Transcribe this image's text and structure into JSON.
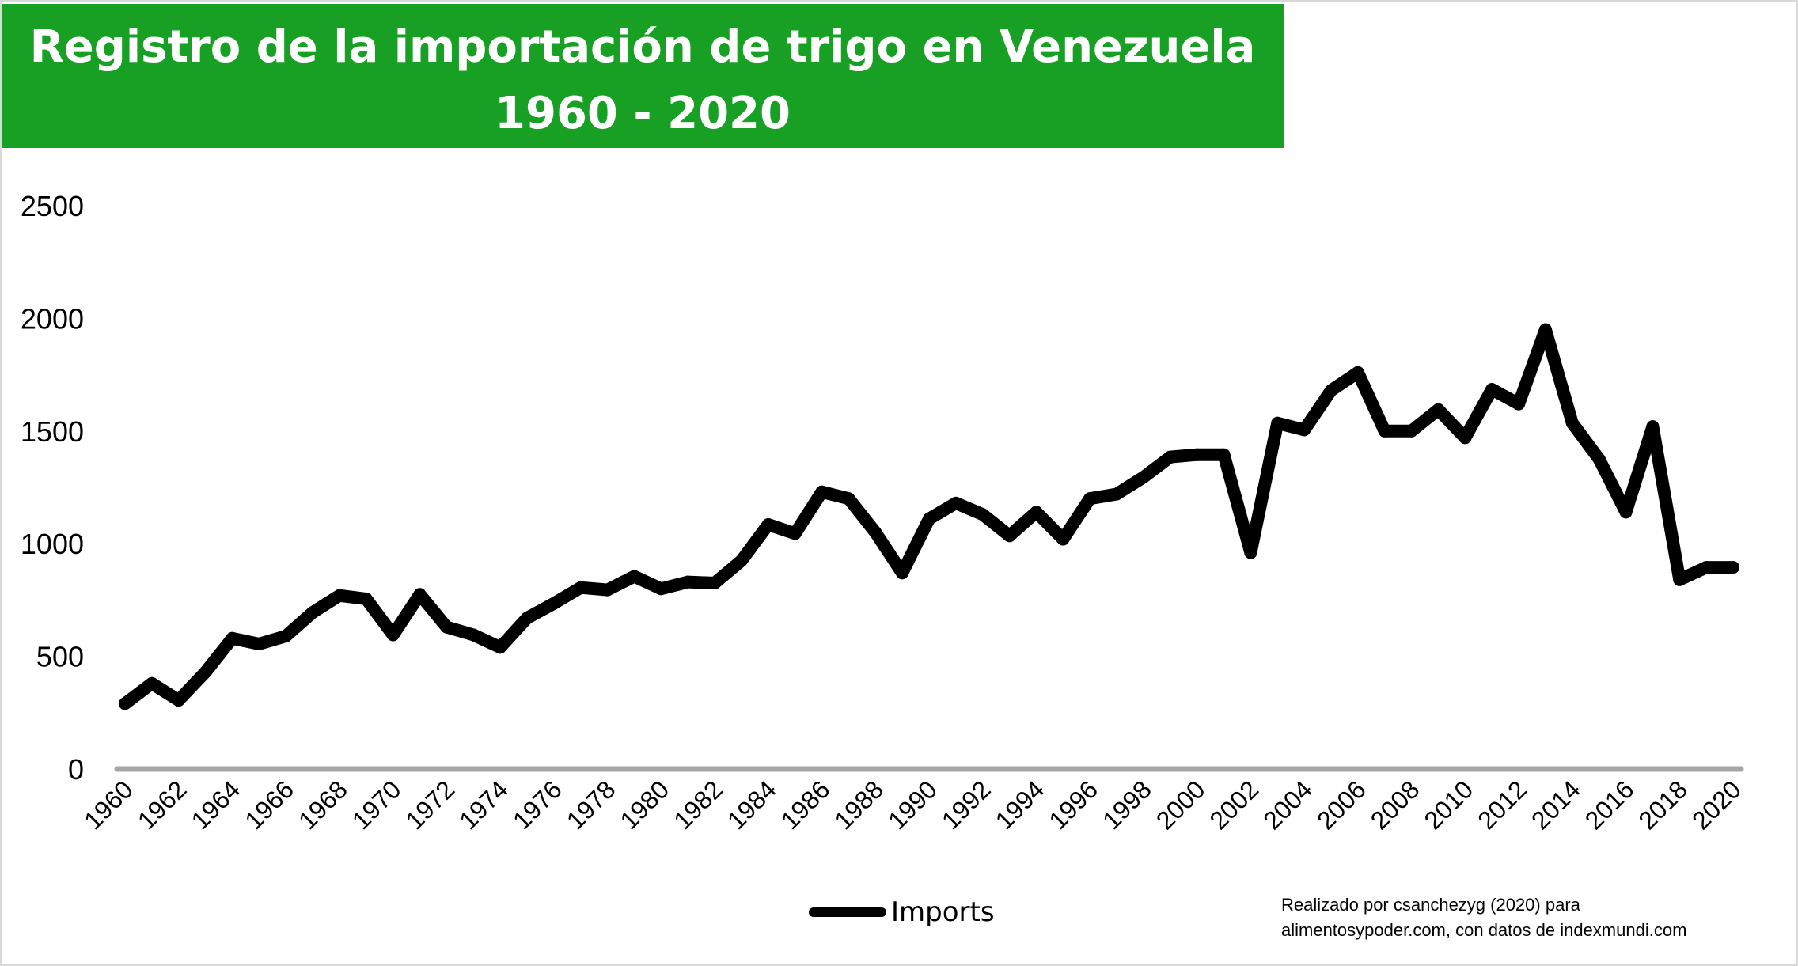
{
  "title": {
    "line1": "Registro de la importación de trigo en Venezuela",
    "line2": "1960 - 2020"
  },
  "credit": {
    "line1": "Realizado por csanchezyg (2020) para",
    "line2": "alimentosypoder.com, con datos de indexmundi.com"
  },
  "colors": {
    "title_background": "#18a024",
    "line": "#000000",
    "zero_axis": "#a6a6a6"
  },
  "chart_data": {
    "type": "line",
    "title": "Registro de la importación de trigo en Venezuela 1960 - 2020",
    "xlabel": "",
    "ylabel": "",
    "ylim": [
      0,
      2500
    ],
    "yticks": [
      0,
      500,
      1000,
      1500,
      2000,
      2500
    ],
    "xticks": [
      1960,
      1962,
      1964,
      1966,
      1968,
      1970,
      1972,
      1974,
      1976,
      1978,
      1980,
      1982,
      1984,
      1986,
      1988,
      1990,
      1992,
      1994,
      1996,
      1998,
      2000,
      2002,
      2004,
      2006,
      2008,
      2010,
      2012,
      2014,
      2016,
      2018,
      2020
    ],
    "grid": false,
    "legend_position": "bottom",
    "x": [
      1960,
      1961,
      1962,
      1963,
      1964,
      1965,
      1966,
      1967,
      1968,
      1969,
      1970,
      1971,
      1972,
      1973,
      1974,
      1975,
      1976,
      1977,
      1978,
      1979,
      1980,
      1981,
      1982,
      1983,
      1984,
      1985,
      1986,
      1987,
      1988,
      1989,
      1990,
      1991,
      1992,
      1993,
      1994,
      1995,
      1996,
      1997,
      1998,
      1999,
      2000,
      2001,
      2002,
      2003,
      2004,
      2005,
      2006,
      2007,
      2008,
      2009,
      2010,
      2011,
      2012,
      2013,
      2014,
      2015,
      2016,
      2017,
      2018,
      2019,
      2020
    ],
    "series": [
      {
        "name": "Imports",
        "values": [
          290,
          380,
          305,
          430,
          580,
          555,
          590,
          695,
          770,
          755,
          595,
          775,
          630,
          595,
          540,
          670,
          735,
          805,
          795,
          855,
          800,
          830,
          825,
          925,
          1085,
          1045,
          1230,
          1200,
          1050,
          870,
          1110,
          1180,
          1130,
          1035,
          1140,
          1020,
          1200,
          1220,
          1295,
          1385,
          1395,
          1395,
          960,
          1535,
          1505,
          1680,
          1760,
          1500,
          1500,
          1595,
          1470,
          1685,
          1620,
          1950,
          1535,
          1375,
          1140,
          1520,
          840,
          895,
          895
        ]
      }
    ]
  }
}
